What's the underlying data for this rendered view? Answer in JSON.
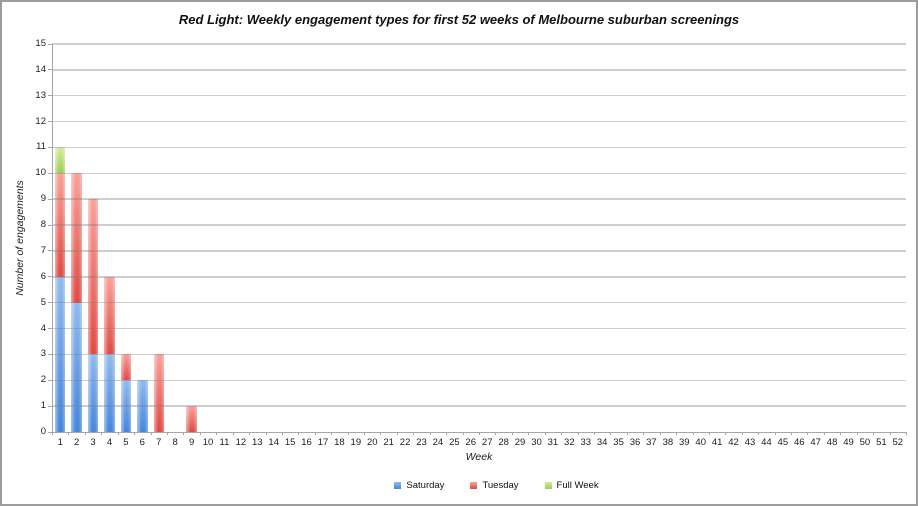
{
  "window": {
    "background_color": "#ffffff",
    "border_color": "#9c9c9c"
  },
  "chart_data": {
    "type": "bar",
    "stacked": true,
    "title": "Red Light: Weekly engagement types for first 52 weeks of Melbourne suburban screenings",
    "xlabel": "Week",
    "ylabel": "Number of engagements",
    "ylim": [
      0,
      15
    ],
    "y_tick_step": 1,
    "grid": true,
    "legend_position": "bottom",
    "gridline_color": "#c4c4c4",
    "categories": [
      1,
      2,
      3,
      4,
      5,
      6,
      7,
      8,
      9,
      10,
      11,
      12,
      13,
      14,
      15,
      16,
      17,
      18,
      19,
      20,
      21,
      22,
      23,
      24,
      25,
      26,
      27,
      28,
      29,
      30,
      31,
      32,
      33,
      34,
      35,
      36,
      37,
      38,
      39,
      40,
      41,
      42,
      43,
      44,
      45,
      46,
      47,
      48,
      49,
      50,
      51,
      52
    ],
    "series": [
      {
        "name": "Saturday",
        "color_top": "#93BAEE",
        "color_bottom": "#4586DC",
        "values": [
          6,
          5,
          3,
          3,
          2,
          2,
          0,
          0,
          0,
          0,
          0,
          0,
          0,
          0,
          0,
          0,
          0,
          0,
          0,
          0,
          0,
          0,
          0,
          0,
          0,
          0,
          0,
          0,
          0,
          0,
          0,
          0,
          0,
          0,
          0,
          0,
          0,
          0,
          0,
          0,
          0,
          0,
          0,
          0,
          0,
          0,
          0,
          0,
          0,
          0,
          0,
          0
        ]
      },
      {
        "name": "Tuesday",
        "color_top": "#F9A29B",
        "color_bottom": "#E04B45",
        "values": [
          4,
          5,
          6,
          3,
          1,
          0,
          3,
          0,
          1,
          0,
          0,
          0,
          0,
          0,
          0,
          0,
          0,
          0,
          0,
          0,
          0,
          0,
          0,
          0,
          0,
          0,
          0,
          0,
          0,
          0,
          0,
          0,
          0,
          0,
          0,
          0,
          0,
          0,
          0,
          0,
          0,
          0,
          0,
          0,
          0,
          0,
          0,
          0,
          0,
          0,
          0,
          0
        ]
      },
      {
        "name": "Full Week",
        "color_top": "#D5EDA0",
        "color_bottom": "#9CCE50",
        "values": [
          1,
          0,
          0,
          0,
          0,
          0,
          0,
          0,
          0,
          0,
          0,
          0,
          0,
          0,
          0,
          0,
          0,
          0,
          0,
          0,
          0,
          0,
          0,
          0,
          0,
          0,
          0,
          0,
          0,
          0,
          0,
          0,
          0,
          0,
          0,
          0,
          0,
          0,
          0,
          0,
          0,
          0,
          0,
          0,
          0,
          0,
          0,
          0,
          0,
          0,
          0,
          0
        ]
      }
    ]
  }
}
